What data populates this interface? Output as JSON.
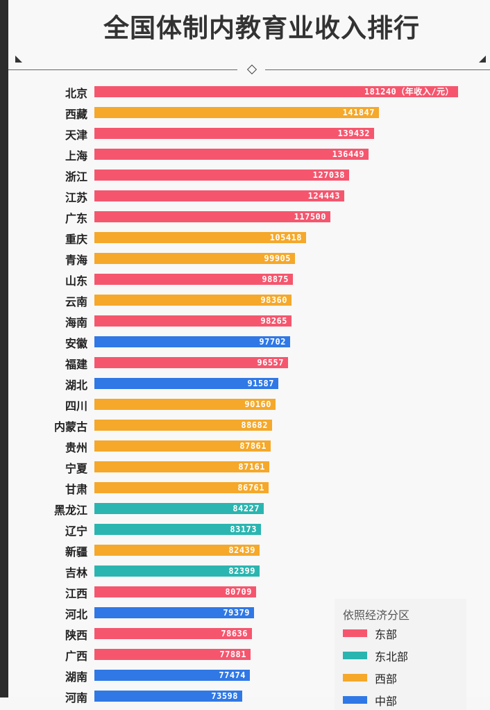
{
  "header": {
    "title": "全国体制内教育业收入排行"
  },
  "legend": {
    "title": "依照经济分区",
    "items": [
      {
        "label": "东部",
        "color": "#f5566e"
      },
      {
        "label": "东北部",
        "color": "#2bb5b0"
      },
      {
        "label": "西部",
        "color": "#f5a82a"
      },
      {
        "label": "中部",
        "color": "#2f78e6"
      }
    ]
  },
  "unit_suffix": "（年收入/元）",
  "chart_data": {
    "type": "bar",
    "orientation": "horizontal",
    "title": "全国体制内教育业收入排行",
    "xlabel": "年收入/元",
    "ylabel": "",
    "legend_title": "依照经济分区",
    "legend_position": "bottom-right",
    "grid": false,
    "categories": [
      "北京",
      "西藏",
      "天津",
      "上海",
      "浙江",
      "江苏",
      "广东",
      "重庆",
      "青海",
      "山东",
      "云南",
      "海南",
      "安徽",
      "福建",
      "湖北",
      "四川",
      "内蒙古",
      "贵州",
      "宁夏",
      "甘肃",
      "黑龙江",
      "辽宁",
      "新疆",
      "吉林",
      "江西",
      "河北",
      "陕西",
      "广西",
      "湖南",
      "河南"
    ],
    "values": [
      181240,
      141847,
      139432,
      136449,
      127038,
      124443,
      117500,
      105418,
      99905,
      98875,
      98360,
      98265,
      97702,
      96557,
      91587,
      90160,
      88682,
      87861,
      87161,
      86761,
      84227,
      83173,
      82439,
      82399,
      80709,
      79379,
      78636,
      77881,
      77474,
      73598
    ],
    "region": [
      "东部",
      "西部",
      "东部",
      "东部",
      "东部",
      "东部",
      "东部",
      "西部",
      "西部",
      "东部",
      "西部",
      "东部",
      "中部",
      "东部",
      "中部",
      "西部",
      "西部",
      "西部",
      "西部",
      "西部",
      "东北部",
      "东北部",
      "西部",
      "东北部",
      "东部",
      "中部",
      "东部",
      "东部",
      "中部",
      "中部"
    ],
    "region_colors": {
      "东部": "#f5566e",
      "东北部": "#2bb5b0",
      "西部": "#f5a82a",
      "中部": "#2f78e6"
    },
    "xlim": [
      0,
      181240
    ]
  }
}
